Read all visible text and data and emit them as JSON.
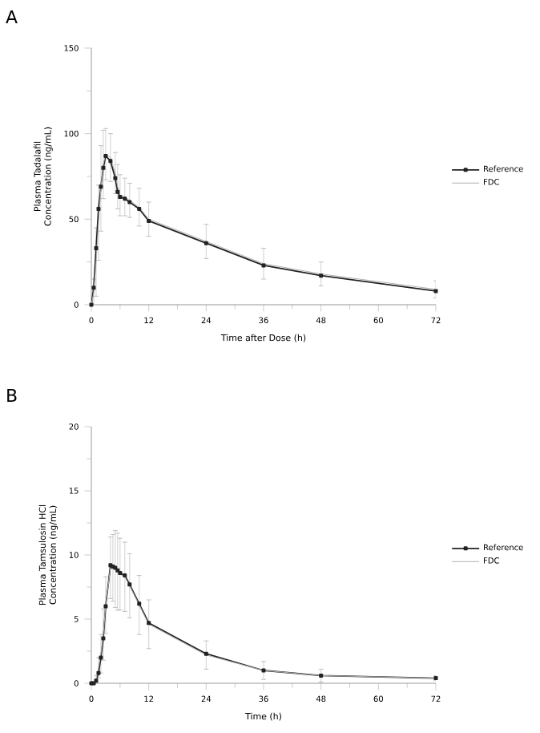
{
  "chart_data": [
    {
      "type": "line",
      "title": "A",
      "xlabel": "Time after Dose (h)",
      "ylabel": "Plasma Tadalafil Concentration (ng/mL)",
      "legend": "right",
      "xlim": [
        0,
        72
      ],
      "ylim": [
        0,
        150
      ],
      "xticks": [
        0,
        12,
        24,
        36,
        48,
        60,
        72
      ],
      "yticks": [
        0,
        50,
        100,
        150
      ],
      "x": [
        0,
        0.5,
        1,
        1.5,
        2,
        2.5,
        3,
        4,
        5,
        5.5,
        6,
        7,
        8,
        10,
        12,
        24,
        36,
        48,
        72
      ],
      "series": [
        {
          "name": "Reference",
          "color": "#222222",
          "marker": "square",
          "values": [
            0,
            10,
            33,
            56,
            69,
            80,
            87,
            84,
            74,
            66,
            63,
            62,
            60,
            56,
            49,
            36,
            23,
            17,
            8
          ]
        },
        {
          "name": "FDC",
          "color": "#b0b0b0",
          "marker": "none",
          "values": [
            0,
            7,
            25,
            48,
            68,
            82,
            88,
            86,
            77,
            69,
            64,
            63,
            61,
            57,
            50,
            37,
            24,
            18,
            9
          ],
          "errors": [
            null,
            8,
            20,
            22,
            25,
            20,
            15,
            14,
            12,
            13,
            12,
            11,
            10,
            11,
            10,
            10,
            9,
            7,
            5
          ]
        }
      ]
    },
    {
      "type": "line",
      "title": "B",
      "xlabel": "Time (h)",
      "ylabel": "Plasma Tamsulosin HCl Concentration (ng/mL)",
      "legend": "right",
      "xlim": [
        0,
        72
      ],
      "ylim": [
        0,
        20
      ],
      "xticks": [
        0,
        12,
        24,
        36,
        48,
        60,
        72
      ],
      "yticks": [
        0,
        5,
        10,
        15,
        20
      ],
      "x": [
        0,
        0.5,
        1,
        1.5,
        2,
        2.5,
        3,
        4,
        4.5,
        5,
        5.5,
        6,
        7,
        8,
        10,
        12,
        24,
        36,
        48,
        72
      ],
      "series": [
        {
          "name": "Reference",
          "color": "#222222",
          "marker": "square",
          "values": [
            0,
            0,
            0.2,
            0.8,
            2,
            3.5,
            6,
            9.2,
            9.1,
            9.0,
            8.8,
            8.6,
            8.4,
            7.7,
            6.2,
            4.7,
            2.3,
            1.0,
            0.6,
            0.4
          ]
        },
        {
          "name": "FDC",
          "color": "#b0b0b0",
          "marker": "none",
          "values": [
            0,
            0,
            0.3,
            1.2,
            2.3,
            3.8,
            6.1,
            9.0,
            9.0,
            8.9,
            8.7,
            8.5,
            8.3,
            7.6,
            6.1,
            4.6,
            2.2,
            1.0,
            0.6,
            0.4
          ],
          "errors": [
            null,
            null,
            0.3,
            0.8,
            1.5,
            2,
            2.2,
            2.4,
            2.6,
            3,
            3,
            2.8,
            2.7,
            2.5,
            2.3,
            1.9,
            1.1,
            0.7,
            0.5,
            0.2
          ]
        }
      ]
    }
  ]
}
